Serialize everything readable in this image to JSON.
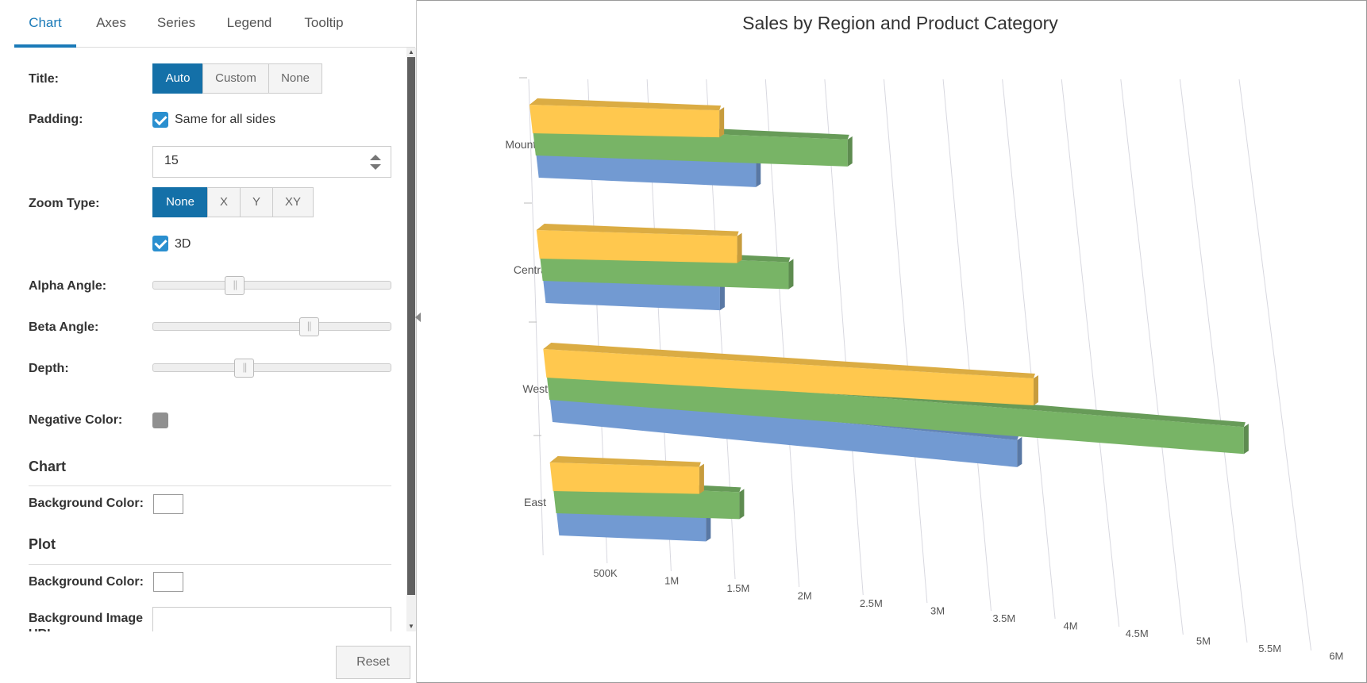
{
  "tabs": [
    "Chart",
    "Axes",
    "Series",
    "Legend",
    "Tooltip"
  ],
  "active_tab": "Chart",
  "settings": {
    "title_label": "Title:",
    "title_options": [
      "Auto",
      "Custom",
      "None"
    ],
    "title_selected": "Auto",
    "padding_label": "Padding:",
    "padding_same_label": "Same for all sides",
    "padding_same_checked": true,
    "padding_value": "15",
    "zoom_label": "Zoom Type:",
    "zoom_options": [
      "None",
      "X",
      "Y",
      "XY"
    ],
    "zoom_selected": "None",
    "threed_label": "3D",
    "threed_checked": true,
    "alpha_label": "Alpha Angle:",
    "alpha_fraction": 0.34,
    "beta_label": "Beta Angle:",
    "beta_fraction": 0.65,
    "depth_label": "Depth:",
    "depth_fraction": 0.38,
    "negative_color_label": "Negative Color:",
    "negative_color": "#909090",
    "chart_section": "Chart",
    "chart_bg_label": "Background Color:",
    "plot_section": "Plot",
    "plot_bg_label": "Background Color:",
    "plot_bg_image_label": "Background Image URL:",
    "reset_label": "Reset"
  },
  "chart_data": {
    "type": "bar",
    "orientation": "horizontal",
    "three_d": true,
    "title": "Sales by Region and Product Category",
    "categories": [
      "Mountain",
      "Central",
      "West",
      "East"
    ],
    "series": [
      {
        "color": "#ffc84e",
        "values": [
          1600000,
          1700000,
          4100000,
          1300000
        ]
      },
      {
        "color": "#78b466",
        "values": [
          2650000,
          2100000,
          5800000,
          1600000
        ]
      },
      {
        "color": "#729ad2",
        "values": [
          1850000,
          1500000,
          3900000,
          1300000
        ]
      }
    ],
    "x_ticks": [
      "500K",
      "1M",
      "1.5M",
      "2M",
      "2.5M",
      "3M",
      "3.5M",
      "4M",
      "4.5M",
      "5M",
      "5.5M",
      "6M"
    ],
    "xlim": [
      0,
      6000000
    ],
    "grid": true
  }
}
